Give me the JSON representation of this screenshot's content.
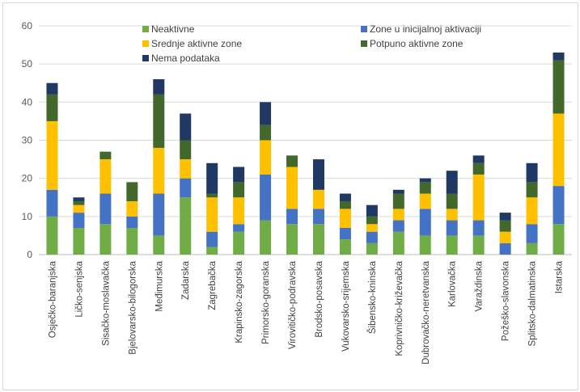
{
  "chart_data": {
    "type": "bar",
    "stacked": true,
    "title": "",
    "xlabel": "",
    "ylabel": "",
    "ylim": [
      0,
      60
    ],
    "yticks": [
      0,
      10,
      20,
      30,
      40,
      50,
      60
    ],
    "grid": true,
    "legend_position": "top",
    "categories": [
      "Osječko-baranjska",
      "Ličko-senjska",
      "Sisačko-moslavačka",
      "Bjelovarsko-bilogorska",
      "Međimurska",
      "Zadarska",
      "Zagrebačka",
      "Krapinsko-zagorska",
      "Primorsko-goranska",
      "Virovitičko-podravska",
      "Brodsko-posavska",
      "Vukovarsko-srijemska",
      "Šibensko-kninska",
      "Koprivničko-križevačka",
      "Dubrovačko-neretvanska",
      "Karlovačka",
      "Varaždinska",
      "Požeško-slavonska",
      "Splitsko-dalmatinska",
      "Istarska"
    ],
    "series": [
      {
        "name": "Neaktivne",
        "color": "#70ad47",
        "values": [
          10,
          7,
          8,
          7,
          5,
          15,
          2,
          6,
          9,
          8,
          8,
          4,
          3,
          6,
          5,
          5,
          5,
          0,
          3,
          8
        ]
      },
      {
        "name": "Zone u inicijalnoj aktivaciji",
        "color": "#4472c4",
        "values": [
          7,
          4,
          8,
          3,
          11,
          5,
          4,
          2,
          12,
          4,
          4,
          3,
          3,
          3,
          7,
          4,
          4,
          3,
          5,
          10
        ]
      },
      {
        "name": "Srednje aktivne zone",
        "color": "#ffc000",
        "values": [
          18,
          2,
          9,
          4,
          12,
          5,
          9,
          7,
          9,
          11,
          5,
          5,
          2,
          3,
          4,
          3,
          12,
          3,
          7,
          19
        ]
      },
      {
        "name": "Potpuno aktivne zone",
        "color": "#43682b",
        "values": [
          7,
          1,
          2,
          5,
          14,
          5,
          1,
          4,
          4,
          3,
          0,
          2,
          2,
          4,
          3,
          4,
          3,
          3,
          4,
          14
        ]
      },
      {
        "name": "Nema podataka",
        "color": "#203864",
        "values": [
          3,
          1,
          0,
          0,
          4,
          7,
          8,
          4,
          6,
          0,
          8,
          2,
          3,
          1,
          1,
          6,
          2,
          2,
          5,
          2
        ]
      }
    ]
  }
}
